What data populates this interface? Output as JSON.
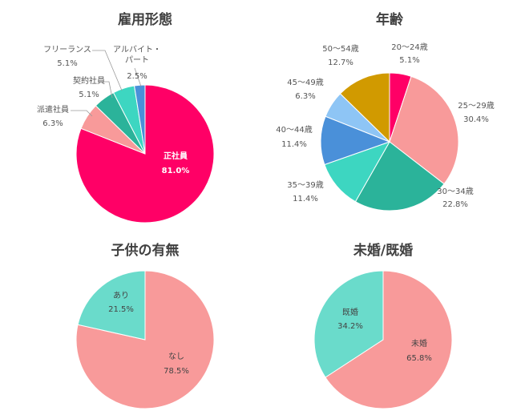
{
  "chart_data": [
    {
      "type": "pie",
      "title": "雇用形態",
      "slices": [
        {
          "label": "正社員",
          "value": 81.0,
          "pct": "81.0%",
          "color": "#FF0066"
        },
        {
          "label": "派遣社員",
          "value": 6.3,
          "pct": "6.3%",
          "color": "#F89A9A"
        },
        {
          "label": "契約社員",
          "value": 5.1,
          "pct": "5.1%",
          "color": "#2BB39A"
        },
        {
          "label": "フリーランス",
          "value": 5.1,
          "pct": "5.1%",
          "color": "#3DD6C1"
        },
        {
          "label": "アルバイト・パート",
          "label_lines": [
            "アルバイト・",
            "パート"
          ],
          "value": 2.5,
          "pct": "2.5%",
          "color": "#4A90D9"
        }
      ]
    },
    {
      "type": "pie",
      "title": "年齢",
      "slices": [
        {
          "label": "20～24歳",
          "value": 5.1,
          "pct": "5.1%",
          "color": "#FF0066"
        },
        {
          "label": "25～29歳",
          "value": 30.4,
          "pct": "30.4%",
          "color": "#F89A9A"
        },
        {
          "label": "30～34歳",
          "value": 22.8,
          "pct": "22.8%",
          "color": "#2BB39A"
        },
        {
          "label": "35～39歳",
          "value": 11.4,
          "pct": "11.4%",
          "color": "#3DD6C1"
        },
        {
          "label": "40～44歳",
          "value": 11.4,
          "pct": "11.4%",
          "color": "#4A90D9"
        },
        {
          "label": "45～49歳",
          "value": 6.3,
          "pct": "6.3%",
          "color": "#8EC5F5"
        },
        {
          "label": "50～54歳",
          "value": 12.7,
          "pct": "12.7%",
          "color": "#D19A00"
        }
      ]
    },
    {
      "type": "pie",
      "title": "子供の有無",
      "slices": [
        {
          "label": "なし",
          "value": 78.5,
          "pct": "78.5%",
          "color": "#F89A9A"
        },
        {
          "label": "あり",
          "value": 21.5,
          "pct": "21.5%",
          "color": "#6ADBCB"
        }
      ]
    },
    {
      "type": "pie",
      "title": "未婚/既婚",
      "slices": [
        {
          "label": "未婚",
          "value": 65.8,
          "pct": "65.8%",
          "color": "#F89A9A"
        },
        {
          "label": "既婚",
          "value": 34.2,
          "pct": "34.2%",
          "color": "#6ADBCB"
        }
      ]
    }
  ]
}
